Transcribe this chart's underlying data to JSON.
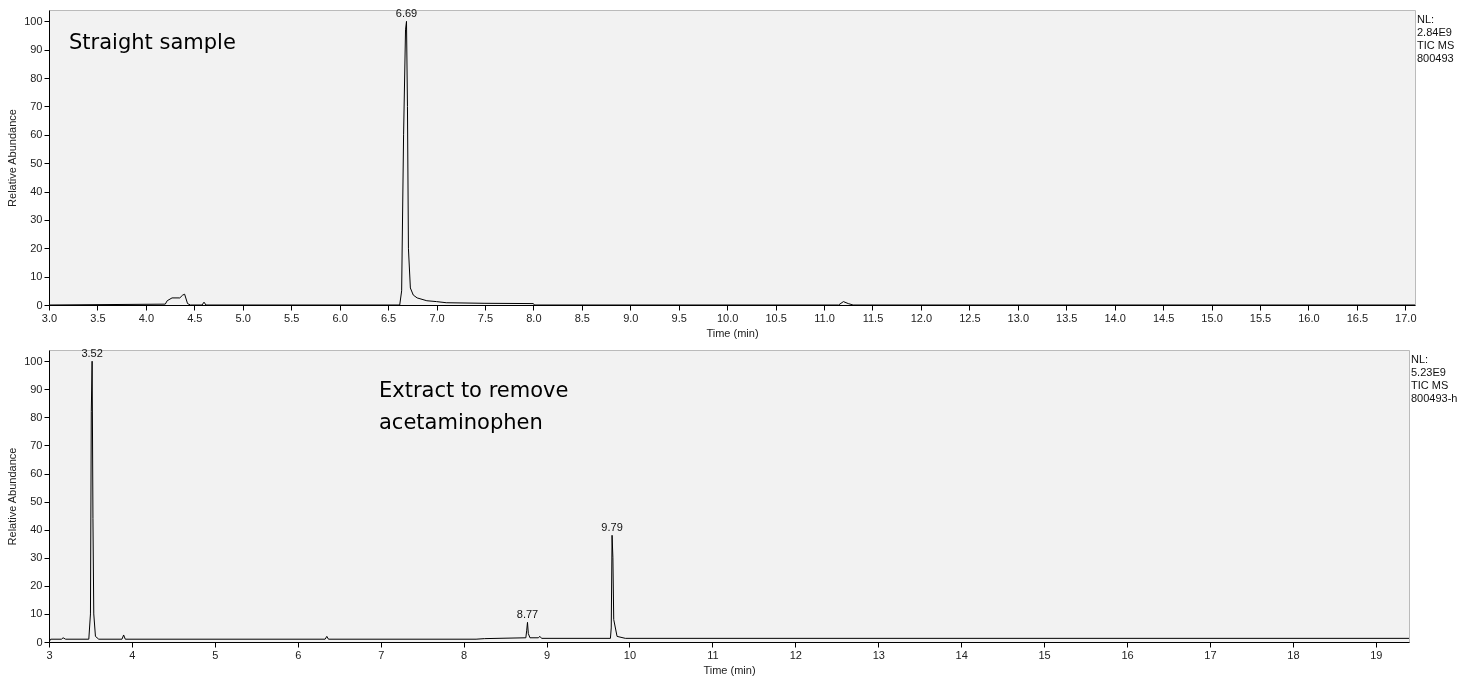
{
  "chart_data": [
    {
      "type": "line",
      "xlabel": "Time (min)",
      "ylabel": "Relative Abundance",
      "xlim": [
        3.0,
        17.1
      ],
      "xticks": [
        {
          "value": 3,
          "label": "3.0"
        },
        3.5,
        {
          "value": 4,
          "label": "4.0"
        },
        4.5,
        {
          "value": 5,
          "label": "5.0"
        },
        5.5,
        {
          "value": 6,
          "label": "6.0"
        },
        6.5,
        {
          "value": 7,
          "label": "7.0"
        },
        7.5,
        {
          "value": 8,
          "label": "8.0"
        },
        8.5,
        {
          "value": 9,
          "label": "9.0"
        },
        9.5,
        {
          "value": 10,
          "label": "10.0"
        },
        10.5,
        {
          "value": 11,
          "label": "11.0"
        },
        11.5,
        {
          "value": 12,
          "label": "12.0"
        },
        12.5,
        {
          "value": 13,
          "label": "13.0"
        },
        13.5,
        {
          "value": 14,
          "label": "14.0"
        },
        14.5,
        {
          "value": 15,
          "label": "15.0"
        },
        15.5,
        {
          "value": 16,
          "label": "16.0"
        },
        16.5,
        {
          "value": 17,
          "label": "17.0"
        }
      ],
      "ylim": [
        0,
        104
      ],
      "yticks": [
        0,
        10,
        20,
        30,
        40,
        50,
        60,
        70,
        80,
        90,
        100
      ],
      "grid": false,
      "series": [
        {
          "color": "#000000",
          "x": [
            3.0,
            4.2,
            4.22,
            4.27,
            4.35,
            4.38,
            4.4,
            4.43,
            4.46,
            4.58,
            4.6,
            4.62,
            6.62,
            6.64,
            6.66,
            6.68,
            6.69,
            6.7,
            6.71,
            6.73,
            6.76,
            6.8,
            6.9,
            7.0,
            7.1,
            7.5,
            8.0,
            8.01,
            11.15,
            11.2,
            11.25,
            11.3,
            17.1
          ],
          "values": [
            0,
            0.3,
            1.5,
            2.5,
            2.5,
            3.5,
            3.8,
            0.5,
            0,
            0,
            1,
            0,
            0,
            5,
            60,
            97,
            100,
            70,
            20,
            6,
            3.5,
            2.5,
            1.5,
            1.2,
            0.8,
            0.6,
            0.5,
            0,
            0,
            1.2,
            0.5,
            0,
            0
          ]
        }
      ],
      "annotations": [
        "Straight sample",
        "NL:",
        "2.84E9",
        "TIC  MS",
        "800493",
        {
          "text": "6.69",
          "x": 6.69,
          "y": 100
        }
      ]
    },
    {
      "type": "line",
      "xlabel": "Time (min)",
      "ylabel": "Relative Abundance",
      "xlim": [
        3,
        19.4
      ],
      "xticks": [
        3,
        4,
        5,
        6,
        7,
        8,
        9,
        10,
        11,
        12,
        13,
        14,
        15,
        16,
        17,
        18,
        19
      ],
      "ylim": [
        0,
        104
      ],
      "yticks": [
        0,
        10,
        20,
        30,
        40,
        50,
        60,
        70,
        80,
        90,
        100
      ],
      "grid": false,
      "series": [
        {
          "color": "#000000",
          "x": [
            3,
            3.02,
            3.15,
            3.17,
            3.2,
            3.48,
            3.5,
            3.51,
            3.52,
            3.53,
            3.54,
            3.56,
            3.6,
            3.88,
            3.9,
            3.92,
            6.33,
            6.35,
            6.37,
            8.15,
            8.25,
            8.75,
            8.76,
            8.77,
            8.78,
            8.8,
            8.9,
            8.92,
            8.94,
            9.77,
            9.78,
            9.79,
            9.8,
            9.81,
            9.85,
            9.95,
            19.4
          ],
          "values": [
            0,
            1,
            1,
            1.5,
            1,
            1,
            10,
            82,
            100,
            44,
            10,
            2,
            1,
            1,
            2.5,
            1,
            1,
            2,
            1,
            1,
            1.2,
            1.5,
            4,
            7,
            3,
            1.5,
            1.5,
            2,
            1.3,
            1.3,
            5,
            38,
            30,
            8,
            2,
            1.3,
            1.3
          ]
        }
      ],
      "annotations": [
        "Extract to remove acetaminophen",
        "NL:",
        "5.23E9",
        "TIC  MS",
        "800493-h",
        {
          "text": "3.52",
          "x": 3.52,
          "y": 100
        },
        {
          "text": "8.77",
          "x": 8.77,
          "y": 7
        },
        {
          "text": "9.79",
          "x": 9.79,
          "y": 38
        }
      ]
    }
  ]
}
